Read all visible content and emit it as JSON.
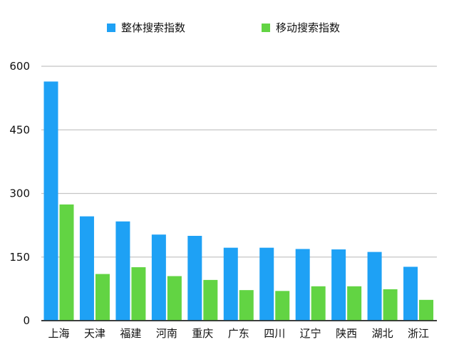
{
  "chart_data": {
    "type": "bar",
    "categories": [
      "上海",
      "天津",
      "福建",
      "河南",
      "重庆",
      "广东",
      "四川",
      "辽宁",
      "陕西",
      "湖北",
      "浙江"
    ],
    "series": [
      {
        "name": "整体搜索指数",
        "color": "#1EA1F5",
        "values": [
          564,
          246,
          234,
          203,
          200,
          172,
          172,
          169,
          168,
          162,
          127
        ]
      },
      {
        "name": "移动搜索指数",
        "color": "#62D443",
        "values": [
          274,
          110,
          126,
          105,
          96,
          72,
          70,
          81,
          81,
          74,
          49
        ]
      }
    ],
    "ylim": [
      0,
      600
    ],
    "yticks": [
      0,
      150,
      300,
      450,
      600
    ],
    "grid": true,
    "legend": "top-center",
    "title": "",
    "xlabel": "",
    "ylabel": ""
  }
}
